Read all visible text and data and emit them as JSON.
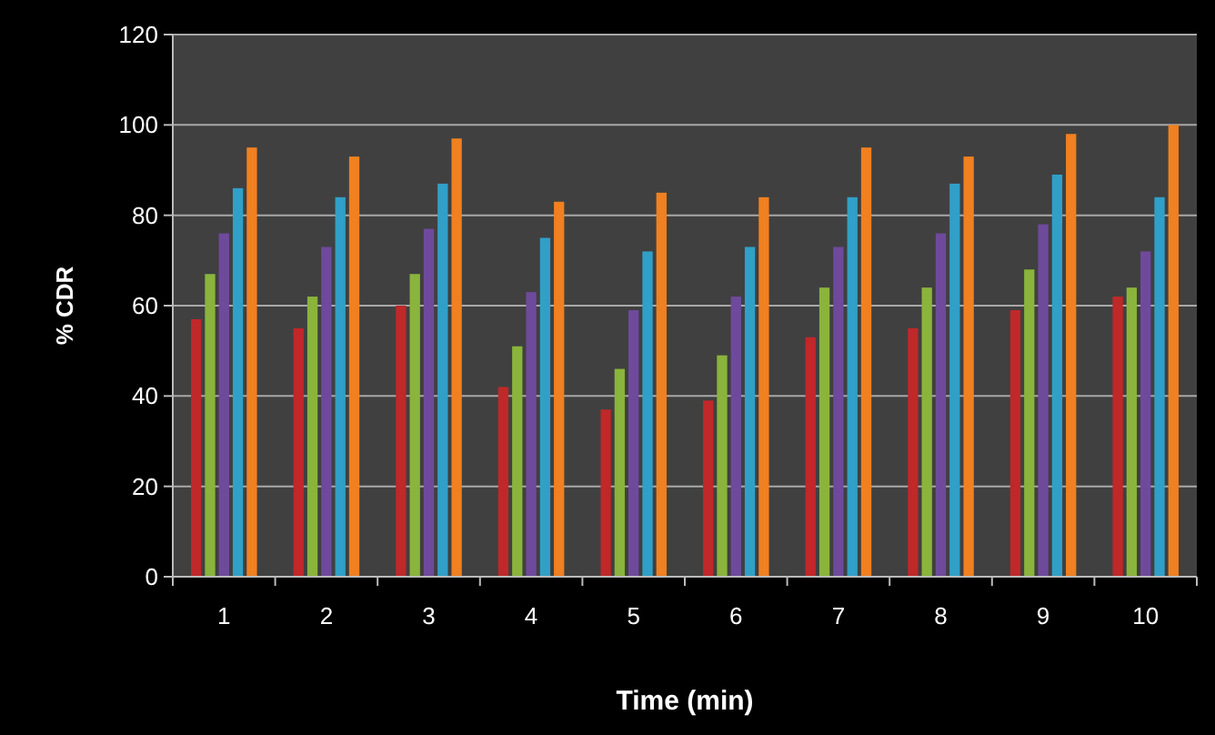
{
  "chart_data": {
    "type": "bar",
    "xlabel": "Time (min)",
    "ylabel": "% CDR",
    "categories": [
      "1",
      "2",
      "3",
      "4",
      "5",
      "6",
      "7",
      "8",
      "9",
      "10"
    ],
    "series": [
      {
        "color": "#c0282a",
        "values": [
          57,
          55,
          60,
          42,
          37,
          39,
          53,
          55,
          59,
          62
        ]
      },
      {
        "color": "#8ab43c",
        "values": [
          67,
          62,
          67,
          51,
          46,
          49,
          64,
          64,
          68,
          64
        ]
      },
      {
        "color": "#6f4a9c",
        "values": [
          76,
          73,
          77,
          63,
          59,
          62,
          73,
          76,
          78,
          72
        ]
      },
      {
        "color": "#30a0c8",
        "values": [
          86,
          84,
          87,
          75,
          72,
          73,
          84,
          87,
          89,
          84
        ]
      },
      {
        "color": "#f08020",
        "values": [
          95,
          93,
          97,
          83,
          85,
          84,
          95,
          93,
          98,
          100
        ]
      }
    ],
    "ylim": [
      0,
      120
    ],
    "yticks": [
      0,
      20,
      40,
      60,
      80,
      100,
      120
    ],
    "grid": "y"
  }
}
